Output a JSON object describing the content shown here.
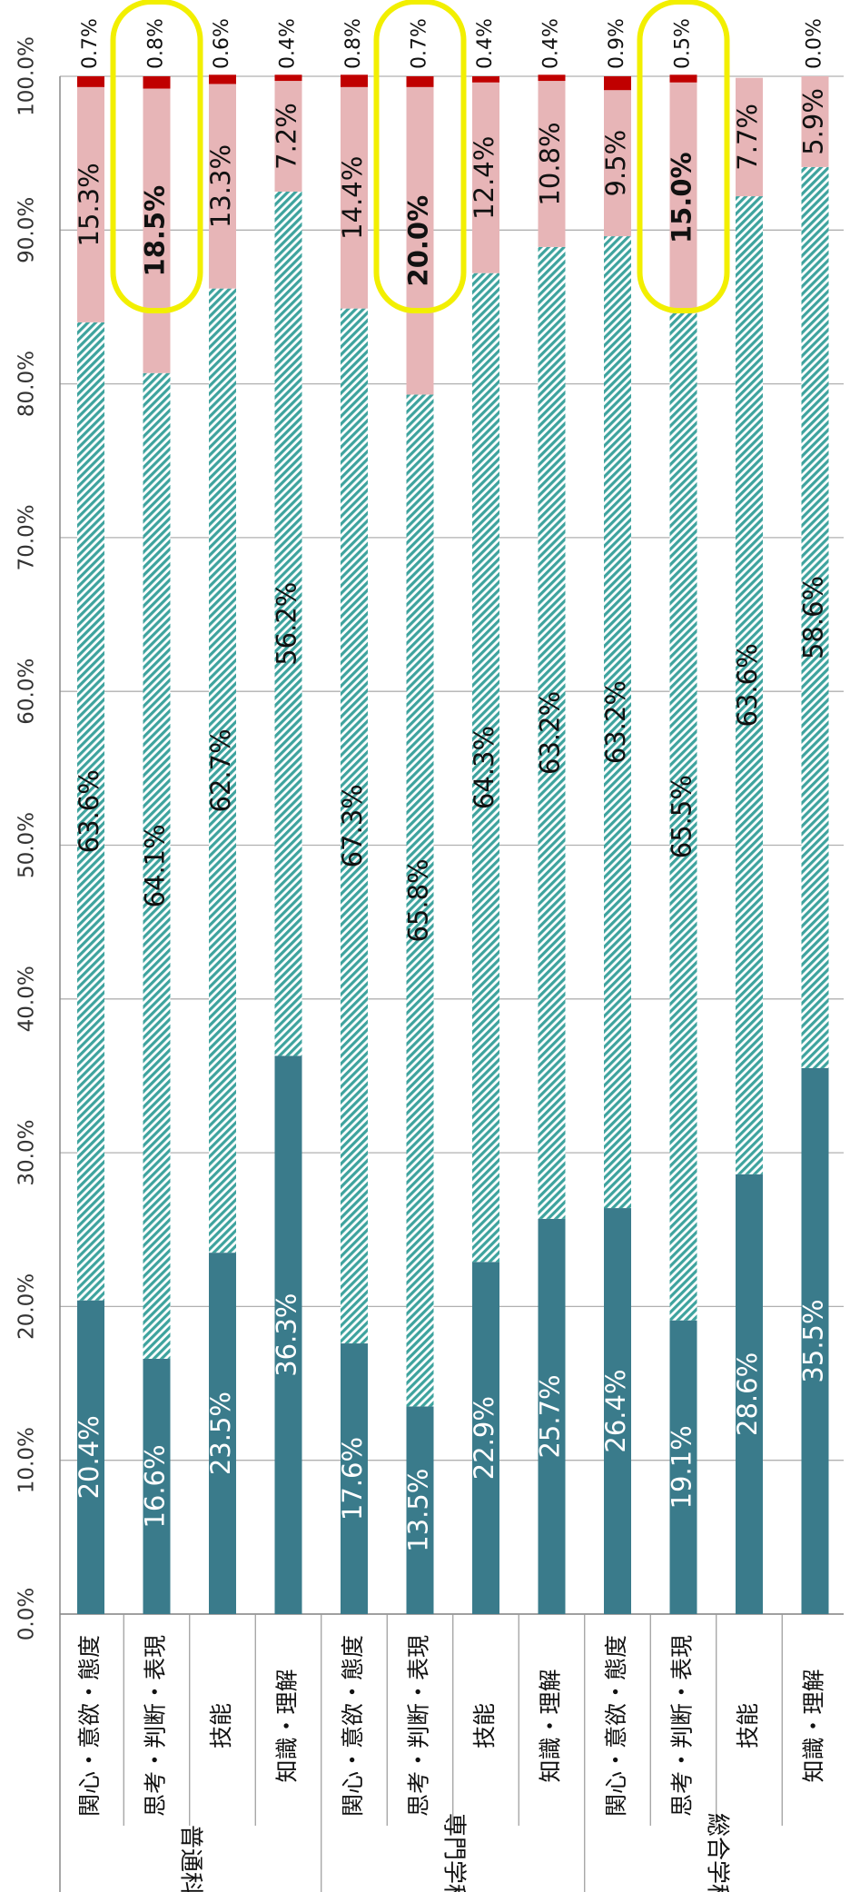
{
  "chart_data": {
    "type": "stacked-bar",
    "categories": [
      "関心・意欲・態度",
      "思考・判断・表現",
      "技能",
      "知識・理解",
      "関心・意欲・態度",
      "思考・判断・表現",
      "技能",
      "知識・理解",
      "関心・意欲・態度",
      "思考・判断・表現",
      "技能",
      "知識・理解"
    ],
    "groups": [
      "普通科",
      "専門学科",
      "総合学科"
    ],
    "highlighted": [
      1,
      5,
      9
    ],
    "series": [
      {
        "color": "#3a7b8b",
        "values": [
          20.4,
          16.6,
          23.5,
          36.3,
          17.6,
          13.5,
          22.9,
          25.7,
          26.4,
          19.1,
          28.6,
          35.5
        ],
        "value_labels": [
          "20.4%",
          "16.6%",
          "23.5%",
          "36.3%",
          "17.6%",
          "13.5%",
          "22.9%",
          "25.7%",
          "26.4%",
          "19.1%",
          "28.6%",
          "35.5%"
        ]
      },
      {
        "color": "#3ea39e",
        "pattern": "hatch",
        "values": [
          63.6,
          64.1,
          62.7,
          56.2,
          67.3,
          65.8,
          64.3,
          63.2,
          63.2,
          65.5,
          63.6,
          58.6
        ],
        "value_labels": [
          "63.6%",
          "64.1%",
          "62.7%",
          "56.2%",
          "67.3%",
          "65.8%",
          "64.3%",
          "63.2%",
          "63.2%",
          "65.5%",
          "63.6%",
          "58.6%"
        ]
      },
      {
        "color": "#e7b5b7",
        "values": [
          15.3,
          18.5,
          13.3,
          7.2,
          14.4,
          20.0,
          12.4,
          10.8,
          9.5,
          15.0,
          7.7,
          5.9
        ],
        "value_labels": [
          "15.3%",
          "18.5%",
          "13.3%",
          "7.2%",
          "14.4%",
          "20.0%",
          "12.4%",
          "10.8%",
          "9.5%",
          "15.0%",
          "7.7%",
          "5.9%"
        ]
      },
      {
        "color": "#c00000",
        "values": [
          0.7,
          0.8,
          0.6,
          0.4,
          0.8,
          0.7,
          0.4,
          0.4,
          0.9,
          0.5,
          null,
          0.0
        ],
        "value_labels": [
          "0.7%",
          "0.8%",
          "0.6%",
          "0.4%",
          "0.8%",
          "0.7%",
          "0.4%",
          "0.4%",
          "0.9%",
          "0.5%",
          null,
          "0.0%"
        ]
      }
    ],
    "ylim": [
      0,
      100
    ],
    "yticks": [
      {
        "value": 0,
        "label": "0.0%"
      },
      {
        "value": 10,
        "label": "10.0%"
      },
      {
        "value": 20,
        "label": "20.0%"
      },
      {
        "value": 30,
        "label": "30.0%"
      },
      {
        "value": 40,
        "label": "40.0%"
      },
      {
        "value": 50,
        "label": "50.0%"
      },
      {
        "value": 60,
        "label": "60.0%"
      },
      {
        "value": 70,
        "label": "70.0%"
      },
      {
        "value": 80,
        "label": "80.0%"
      },
      {
        "value": 90,
        "label": "90.0%"
      },
      {
        "value": 100,
        "label": "100.0%"
      }
    ],
    "grid": true
  }
}
